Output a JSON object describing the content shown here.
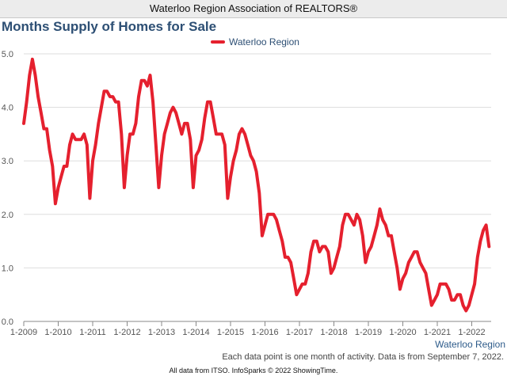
{
  "header": {
    "association": "Waterloo Region Association of REALTORS®"
  },
  "chart_title": "Months Supply of Homes for Sale",
  "region_label": "Waterloo Region",
  "footnote": "Each data point is one month of activity. Data is from September 7, 2022.",
  "footer": "All data from ITSO. InfoSparks © 2022 ShowingTime.",
  "colors": {
    "series": "#e5202e",
    "title": "#2d4f74",
    "grid": "#dddddd"
  },
  "chart_data": {
    "type": "line",
    "title": "Months Supply of Homes for Sale",
    "xlabel": "",
    "ylabel": "",
    "ylim": [
      0,
      5
    ],
    "yticks": [
      "0.0",
      "1.0",
      "2.0",
      "3.0",
      "4.0",
      "5.0"
    ],
    "xticks": [
      "1-2009",
      "1-2010",
      "1-2011",
      "1-2012",
      "1-2013",
      "1-2014",
      "1-2015",
      "1-2016",
      "1-2017",
      "1-2018",
      "1-2019",
      "1-2020",
      "1-2021",
      "1-2022"
    ],
    "grid": true,
    "legend": "top-center",
    "x_start": "2009-01",
    "x_end": "2022-08",
    "series": [
      {
        "name": "Waterloo Region",
        "values": [
          3.7,
          4.1,
          4.6,
          4.9,
          4.6,
          4.2,
          3.9,
          3.6,
          3.6,
          3.2,
          2.9,
          2.2,
          2.5,
          2.7,
          2.9,
          2.9,
          3.3,
          3.5,
          3.4,
          3.4,
          3.4,
          3.5,
          3.3,
          2.3,
          3.0,
          3.3,
          3.7,
          4.0,
          4.3,
          4.3,
          4.2,
          4.2,
          4.1,
          4.1,
          3.5,
          2.5,
          3.1,
          3.5,
          3.5,
          3.7,
          4.2,
          4.5,
          4.5,
          4.4,
          4.6,
          4.1,
          3.3,
          2.5,
          3.1,
          3.5,
          3.7,
          3.9,
          4.0,
          3.9,
          3.7,
          3.5,
          3.7,
          3.7,
          3.4,
          2.5,
          3.1,
          3.2,
          3.4,
          3.8,
          4.1,
          4.1,
          3.8,
          3.5,
          3.5,
          3.5,
          3.3,
          2.3,
          2.7,
          3.0,
          3.2,
          3.5,
          3.6,
          3.5,
          3.3,
          3.1,
          3.0,
          2.8,
          2.4,
          1.6,
          1.8,
          2.0,
          2.0,
          2.0,
          1.9,
          1.7,
          1.5,
          1.2,
          1.2,
          1.1,
          0.8,
          0.5,
          0.6,
          0.7,
          0.7,
          0.9,
          1.3,
          1.5,
          1.5,
          1.3,
          1.4,
          1.4,
          1.3,
          0.9,
          1.0,
          1.2,
          1.4,
          1.8,
          2.0,
          2.0,
          1.9,
          1.8,
          2.0,
          1.9,
          1.6,
          1.1,
          1.3,
          1.4,
          1.6,
          1.8,
          2.1,
          1.9,
          1.8,
          1.6,
          1.6,
          1.3,
          1.0,
          0.6,
          0.8,
          0.9,
          1.1,
          1.2,
          1.3,
          1.3,
          1.1,
          1.0,
          0.9,
          0.6,
          0.3,
          0.4,
          0.5,
          0.7,
          0.7,
          0.7,
          0.6,
          0.4,
          0.4,
          0.5,
          0.5,
          0.3,
          0.2,
          0.3,
          0.5,
          0.7,
          1.2,
          1.5,
          1.7,
          1.8,
          1.4
        ]
      }
    ]
  }
}
